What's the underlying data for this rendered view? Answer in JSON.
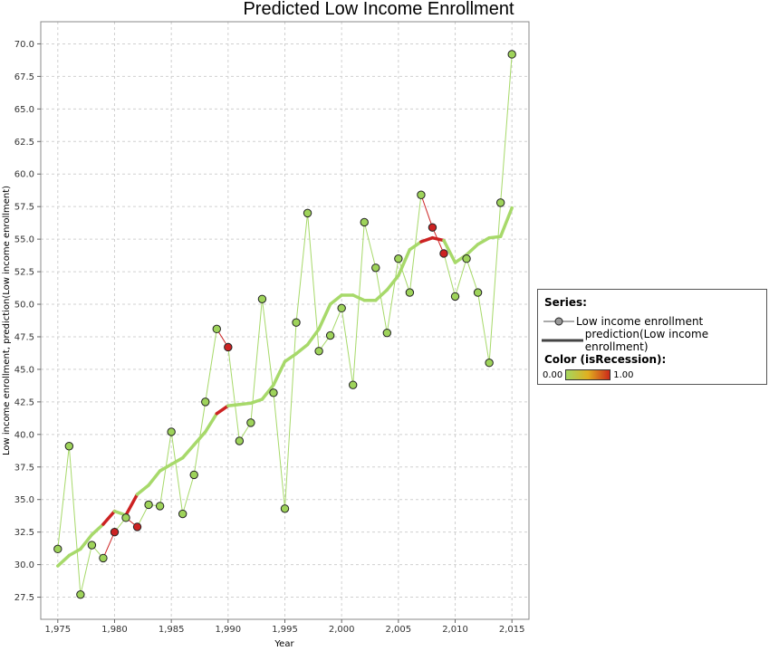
{
  "chart_data": {
    "type": "line",
    "title": "Predicted Low Income Enrollment",
    "xlabel": "Year",
    "ylabel": "Low income enrollment, prediction(Low income enrollment)",
    "xlim": [
      1973.5,
      2016.5
    ],
    "ylim": [
      25.8,
      71.7
    ],
    "xticks": [
      1975,
      1980,
      1985,
      1990,
      1995,
      2000,
      2005,
      2010,
      2015
    ],
    "xtick_labels": [
      "1,975",
      "1,980",
      "1,985",
      "1,990",
      "1,995",
      "2,000",
      "2,005",
      "2,010",
      "2,015"
    ],
    "yticks": [
      27.5,
      30.0,
      32.5,
      35.0,
      37.5,
      40.0,
      42.5,
      45.0,
      47.5,
      50.0,
      52.5,
      55.0,
      57.5,
      60.0,
      62.5,
      65.0,
      67.5,
      70.0
    ],
    "ytick_labels": [
      "27.5",
      "30.0",
      "32.5",
      "35.0",
      "37.5",
      "40.0",
      "42.5",
      "45.0",
      "47.5",
      "50.0",
      "52.5",
      "55.0",
      "57.5",
      "60.0",
      "62.5",
      "65.0",
      "67.5",
      "70.0"
    ],
    "grid": true,
    "x": [
      1975,
      1976,
      1977,
      1978,
      1979,
      1980,
      1981,
      1982,
      1983,
      1984,
      1985,
      1986,
      1987,
      1988,
      1989,
      1990,
      1991,
      1992,
      1993,
      1994,
      1995,
      1996,
      1997,
      1998,
      1999,
      2000,
      2001,
      2002,
      2003,
      2004,
      2005,
      2006,
      2007,
      2008,
      2009,
      2010,
      2011,
      2012,
      2013,
      2014,
      2015
    ],
    "is_recession": [
      0,
      0,
      0,
      0,
      0,
      1,
      0,
      1,
      0,
      0,
      0,
      0,
      0,
      0,
      0,
      1,
      0,
      0,
      0,
      0,
      0,
      0,
      0,
      0,
      0,
      0,
      0,
      0,
      0,
      0,
      0,
      0,
      0,
      1,
      1,
      0,
      0,
      0,
      0,
      0,
      0
    ],
    "series": [
      {
        "name": "Low income enrollment",
        "values": [
          31.2,
          39.1,
          27.7,
          31.5,
          30.5,
          32.5,
          33.6,
          32.9,
          34.6,
          34.5,
          40.2,
          33.9,
          36.9,
          42.5,
          48.1,
          46.7,
          39.5,
          40.9,
          50.4,
          43.2,
          34.3,
          48.6,
          57.0,
          46.4,
          47.6,
          49.7,
          43.8,
          56.3,
          52.8,
          47.8,
          53.5,
          50.9,
          58.4,
          55.9,
          53.9,
          50.6,
          53.5,
          50.9,
          45.5,
          57.8,
          69.2
        ]
      },
      {
        "name": "prediction(Low income enrollment)",
        "values": [
          29.9,
          30.7,
          31.2,
          32.3,
          33.1,
          34.1,
          33.8,
          35.4,
          36.1,
          37.2,
          37.7,
          38.2,
          39.2,
          40.2,
          41.6,
          42.2,
          42.3,
          42.4,
          42.7,
          43.8,
          45.6,
          46.2,
          46.9,
          48.1,
          50.0,
          50.7,
          50.7,
          50.3,
          50.3,
          51.1,
          52.2,
          54.2,
          54.8,
          55.1,
          54.9,
          53.2,
          53.8,
          54.6,
          55.1,
          55.2,
          57.4
        ]
      }
    ],
    "legend": {
      "placement": "right",
      "heading": "Series:",
      "items": [
        "Low income enrollment",
        "prediction(Low income enrollment)"
      ],
      "color_heading": "Color (isRecession):",
      "color_min": "0.00",
      "color_max": "1.00"
    },
    "colors": {
      "normal_fill": "#9ed35a",
      "normal_line": "#a7d96a",
      "recession": "#cc2222",
      "point_stroke": "#222222",
      "grid": "#d0d0d0"
    }
  }
}
